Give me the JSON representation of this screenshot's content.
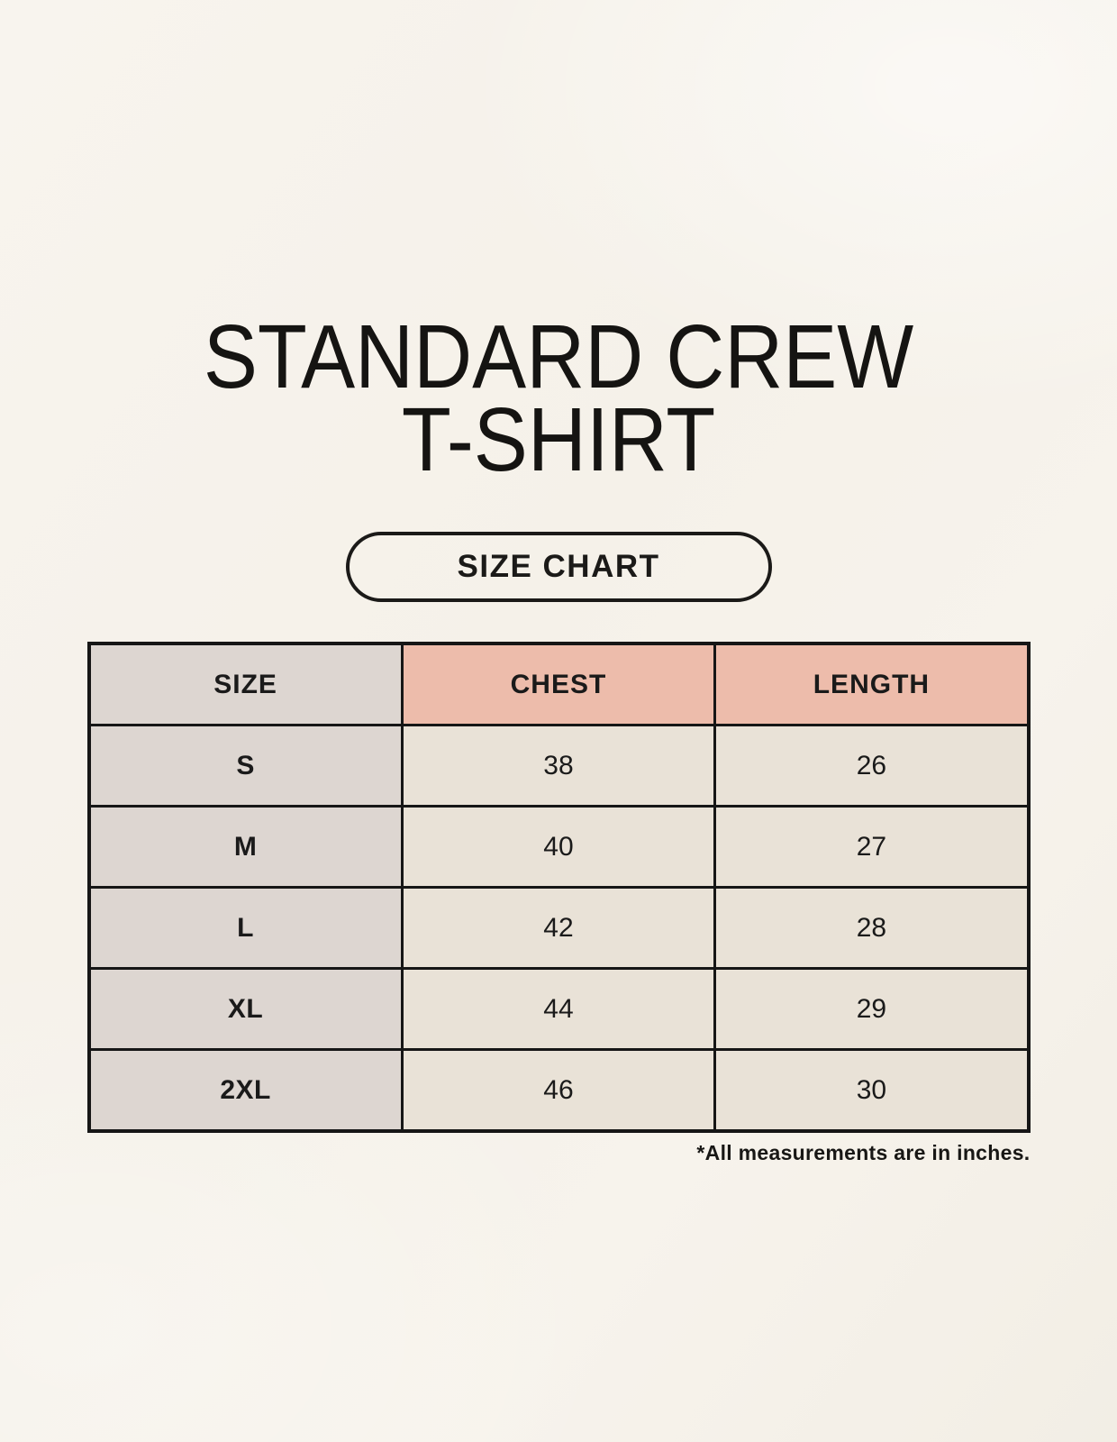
{
  "page": {
    "title_line1": "STANDARD CREW",
    "title_line2": "T-SHIRT",
    "badge_label": "SIZE CHART",
    "footnote": "*All measurements are in inches."
  },
  "table": {
    "headers": [
      "SIZE",
      "CHEST",
      "LENGTH"
    ],
    "rows": [
      {
        "size": "S",
        "chest": "38",
        "length": "26"
      },
      {
        "size": "M",
        "chest": "40",
        "length": "27"
      },
      {
        "size": "L",
        "chest": "42",
        "length": "28"
      },
      {
        "size": "XL",
        "chest": "44",
        "length": "29"
      },
      {
        "size": "2XL",
        "chest": "46",
        "length": "30"
      }
    ]
  },
  "colors": {
    "background": "#F6F2EA",
    "header_pink": "#EDBCAB",
    "size_column_gray": "#DDD6D1",
    "cell_cream": "#E9E2D7",
    "border": "#161616",
    "text": "#1A1A1A"
  },
  "chart_data": {
    "type": "table",
    "title": "STANDARD CREW T-SHIRT — SIZE CHART",
    "columns": [
      "SIZE",
      "CHEST",
      "LENGTH"
    ],
    "rows": [
      [
        "S",
        38,
        26
      ],
      [
        "M",
        40,
        27
      ],
      [
        "L",
        42,
        28
      ],
      [
        "XL",
        44,
        29
      ],
      [
        "2XL",
        46,
        30
      ]
    ],
    "units": "inches",
    "notes": "*All measurements are in inches."
  }
}
